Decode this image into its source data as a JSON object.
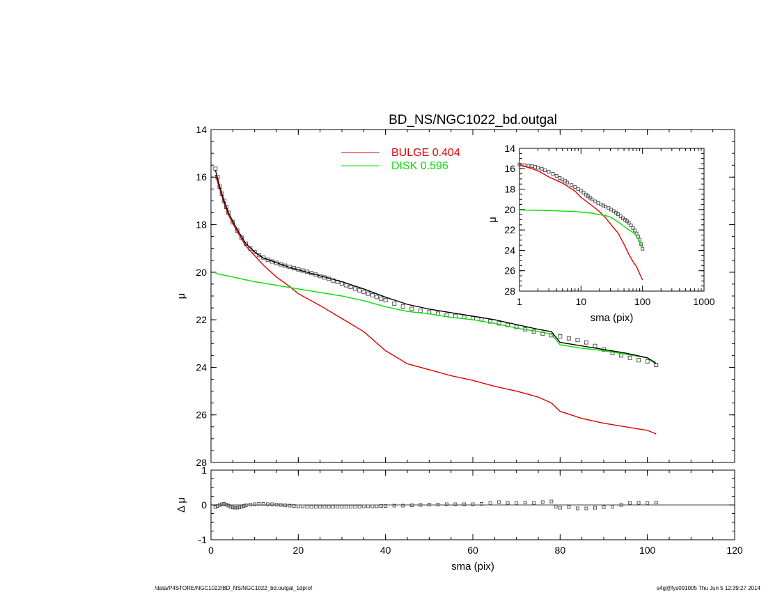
{
  "chart_data": [
    {
      "id": "main",
      "type": "line",
      "title": "BD_NS/NGC1022_bd.outgal",
      "xlabel": "",
      "ylabel": "μ",
      "xlim": [
        0,
        120
      ],
      "ylim": [
        28,
        14
      ],
      "y_inverted": true,
      "yticks": [
        14,
        16,
        18,
        20,
        22,
        24,
        26,
        28
      ],
      "xticks": [
        0,
        20,
        40,
        60,
        80,
        100,
        120
      ],
      "show_x_tick_labels": false,
      "legend": {
        "placement": "top-center",
        "entries": [
          {
            "label": "BULGE  0.404",
            "color": "#e00000"
          },
          {
            "label": "DISK  0.596",
            "color": "#00e000"
          }
        ]
      },
      "series": [
        {
          "name": "BULGE",
          "color": "#e00000",
          "style": "line",
          "x": [
            1,
            2,
            3,
            4,
            6,
            8,
            10,
            12,
            15,
            18,
            20,
            25,
            30,
            35,
            40,
            45,
            50,
            55,
            60,
            65,
            70,
            75,
            78,
            80,
            85,
            90,
            95,
            100,
            102
          ],
          "y": [
            15.9,
            16.5,
            17.1,
            17.6,
            18.3,
            18.9,
            19.3,
            19.7,
            20.2,
            20.6,
            20.9,
            21.4,
            21.95,
            22.5,
            23.3,
            23.85,
            24.1,
            24.35,
            24.55,
            24.8,
            25.0,
            25.25,
            25.5,
            25.85,
            26.15,
            26.35,
            26.5,
            26.65,
            26.8
          ]
        },
        {
          "name": "DISK",
          "color": "#00e000",
          "style": "line",
          "x": [
            1,
            5,
            10,
            15,
            20,
            25,
            30,
            35,
            40,
            45,
            50,
            55,
            60,
            65,
            70,
            75,
            78,
            80,
            85,
            90,
            95,
            100,
            102
          ],
          "y": [
            20.05,
            20.2,
            20.4,
            20.55,
            20.7,
            20.85,
            21.0,
            21.2,
            21.45,
            21.65,
            21.75,
            21.9,
            22.0,
            22.15,
            22.35,
            22.5,
            22.6,
            23.05,
            23.2,
            23.3,
            23.45,
            23.6,
            23.8
          ]
        },
        {
          "name": "model",
          "color": "#000000",
          "style": "line",
          "x": [
            1,
            2,
            3,
            4,
            6,
            8,
            10,
            12,
            15,
            18,
            20,
            25,
            30,
            35,
            40,
            45,
            50,
            55,
            60,
            65,
            70,
            75,
            78,
            80,
            85,
            90,
            95,
            100,
            102
          ],
          "y": [
            15.7,
            16.4,
            17.0,
            17.5,
            18.2,
            18.8,
            19.15,
            19.4,
            19.6,
            19.8,
            19.9,
            20.15,
            20.4,
            20.7,
            21.05,
            21.35,
            21.55,
            21.7,
            21.85,
            22.0,
            22.2,
            22.4,
            22.5,
            22.95,
            23.1,
            23.25,
            23.4,
            23.6,
            23.85
          ]
        },
        {
          "name": "data",
          "color": "#555555",
          "style": "markers",
          "x": [
            1,
            1.5,
            2,
            2.5,
            3,
            3.5,
            4,
            5,
            6,
            7,
            8,
            9,
            10,
            11,
            12,
            13,
            14,
            15,
            16,
            17,
            18,
            19,
            20,
            21,
            22,
            23,
            24,
            25,
            26,
            27,
            28,
            29,
            30,
            31,
            32,
            33,
            34,
            35,
            36,
            37,
            38,
            39,
            40,
            42,
            44,
            46,
            48,
            50,
            52,
            54,
            56,
            58,
            60,
            62,
            64,
            66,
            68,
            70,
            72,
            74,
            76,
            78,
            80,
            82,
            84,
            86,
            88,
            90,
            92,
            94,
            96,
            98,
            100,
            102
          ],
          "y": [
            15.65,
            16.0,
            16.4,
            16.7,
            17.0,
            17.25,
            17.5,
            17.9,
            18.25,
            18.55,
            18.8,
            19.0,
            19.15,
            19.28,
            19.38,
            19.47,
            19.55,
            19.61,
            19.67,
            19.73,
            19.78,
            19.83,
            19.88,
            19.93,
            19.98,
            20.04,
            20.1,
            20.16,
            20.22,
            20.28,
            20.35,
            20.41,
            20.48,
            20.55,
            20.62,
            20.69,
            20.76,
            20.83,
            20.9,
            20.97,
            21.04,
            21.11,
            21.18,
            21.32,
            21.44,
            21.54,
            21.62,
            21.68,
            21.74,
            21.79,
            21.84,
            21.88,
            21.93,
            21.99,
            22.07,
            22.15,
            22.22,
            22.3,
            22.4,
            22.5,
            22.58,
            22.65,
            22.7,
            22.78,
            22.85,
            22.95,
            23.1,
            23.25,
            23.4,
            23.5,
            23.6,
            23.7,
            23.75,
            23.9
          ]
        }
      ]
    },
    {
      "id": "inset",
      "type": "line",
      "title": "",
      "xlabel": "sma (pix)",
      "ylabel": "μ",
      "xscale": "log",
      "xlim": [
        1,
        1000
      ],
      "ylim": [
        28,
        14
      ],
      "y_inverted": true,
      "yticks": [
        14,
        16,
        18,
        20,
        22,
        24,
        26,
        28
      ],
      "xticks": [
        1,
        10,
        100,
        1000
      ],
      "series": [
        {
          "name": "BULGE",
          "color": "#e00000",
          "style": "line",
          "x": [
            1,
            2,
            3,
            5,
            8,
            10,
            15,
            20,
            25,
            30,
            40,
            50,
            60,
            70,
            80,
            90,
            100
          ],
          "y": [
            15.6,
            16.2,
            16.8,
            17.4,
            18.2,
            18.8,
            19.6,
            20.2,
            20.8,
            21.4,
            22.3,
            23.4,
            24.4,
            25.1,
            25.6,
            26.3,
            26.9
          ]
        },
        {
          "name": "DISK",
          "color": "#00e000",
          "style": "line",
          "x": [
            1,
            2,
            3,
            5,
            8,
            10,
            15,
            20,
            25,
            30,
            40,
            50,
            60,
            70,
            80,
            90,
            100
          ],
          "y": [
            20.05,
            20.08,
            20.1,
            20.15,
            20.2,
            20.25,
            20.35,
            20.5,
            20.6,
            20.75,
            21.2,
            21.65,
            22.0,
            22.25,
            22.6,
            23.2,
            23.7
          ]
        },
        {
          "name": "data",
          "color": "#555555",
          "style": "markers",
          "x": [
            1,
            1.2,
            1.4,
            1.6,
            1.8,
            2,
            2.3,
            2.6,
            3,
            3.5,
            4,
            4.5,
            5,
            5.5,
            6,
            7,
            8,
            9,
            10,
            11,
            12,
            13,
            14,
            15,
            17,
            19,
            21,
            23,
            25,
            28,
            31,
            34,
            37,
            40,
            44,
            48,
            52,
            56,
            60,
            65,
            70,
            75,
            80,
            85,
            90,
            95,
            100
          ],
          "y": [
            15.6,
            15.65,
            15.7,
            15.75,
            15.8,
            15.9,
            16.0,
            16.15,
            16.3,
            16.5,
            16.7,
            16.9,
            17.05,
            17.2,
            17.35,
            17.6,
            17.8,
            18.0,
            18.15,
            18.35,
            18.55,
            18.7,
            18.85,
            19.0,
            19.2,
            19.35,
            19.5,
            19.6,
            19.7,
            19.85,
            20.0,
            20.15,
            20.3,
            20.45,
            20.65,
            20.85,
            21.0,
            21.15,
            21.3,
            21.55,
            21.8,
            22.05,
            22.35,
            22.65,
            22.95,
            23.4,
            23.85
          ]
        }
      ]
    },
    {
      "id": "residual",
      "type": "scatter",
      "title": "",
      "xlabel": "sma (pix)",
      "ylabel": "Δ μ",
      "xlim": [
        0,
        120
      ],
      "ylim": [
        -1,
        1
      ],
      "yticks": [
        -1,
        0,
        1
      ],
      "xticks": [
        0,
        20,
        40,
        60,
        80,
        100,
        120
      ],
      "zero_line": true,
      "series": [
        {
          "name": "residual",
          "color": "#555555",
          "style": "markers",
          "x": [
            1,
            1.5,
            2,
            2.5,
            3,
            3.5,
            4,
            4.5,
            5,
            5.5,
            6,
            6.5,
            7,
            7.5,
            8,
            9,
            10,
            11,
            12,
            13,
            14,
            15,
            16,
            17,
            18,
            19,
            20,
            21,
            22,
            23,
            24,
            25,
            26,
            27,
            28,
            29,
            30,
            31,
            32,
            33,
            34,
            35,
            36,
            37,
            38,
            39,
            40,
            42,
            44,
            46,
            48,
            50,
            52,
            54,
            56,
            58,
            60,
            62,
            64,
            66,
            68,
            70,
            72,
            74,
            76,
            78,
            79,
            80,
            82,
            84,
            86,
            88,
            90,
            92,
            94,
            96,
            98,
            100,
            102
          ],
          "y": [
            -0.06,
            -0.03,
            0.0,
            0.02,
            0.03,
            0.01,
            -0.02,
            -0.05,
            -0.07,
            -0.08,
            -0.08,
            -0.07,
            -0.05,
            -0.03,
            -0.01,
            0.01,
            0.02,
            0.03,
            0.03,
            0.02,
            0.02,
            0.01,
            0.0,
            -0.01,
            -0.02,
            -0.03,
            -0.04,
            -0.04,
            -0.05,
            -0.05,
            -0.05,
            -0.05,
            -0.05,
            -0.05,
            -0.05,
            -0.05,
            -0.05,
            -0.05,
            -0.05,
            -0.05,
            -0.05,
            -0.04,
            -0.04,
            -0.04,
            -0.04,
            -0.03,
            -0.03,
            -0.02,
            -0.02,
            -0.01,
            0.0,
            0.01,
            0.01,
            0.02,
            0.02,
            0.02,
            0.02,
            0.03,
            0.05,
            0.08,
            0.06,
            0.05,
            0.07,
            0.06,
            0.08,
            0.1,
            -0.05,
            -0.08,
            -0.06,
            -0.1,
            -0.1,
            -0.08,
            -0.06,
            -0.05,
            0.0,
            0.06,
            0.06,
            0.05,
            0.07
          ]
        }
      ]
    }
  ],
  "footer": {
    "left": "/data/P4STORE/NGC1022/BD_NS/NGC1022_bd.outgal_1dprof",
    "right": "s4g@fys091005  Thu Jun  5 12:39:27 2014"
  }
}
